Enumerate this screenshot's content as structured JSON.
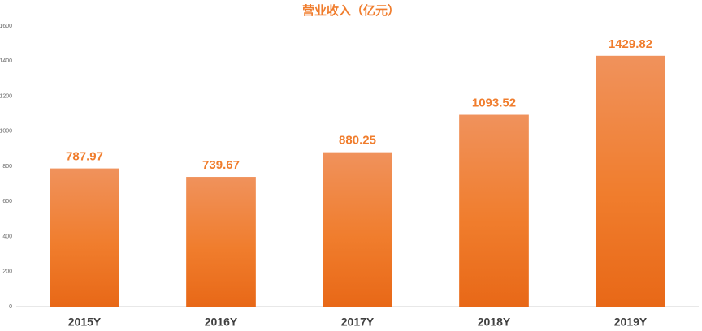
{
  "chart_data": {
    "type": "bar",
    "title": "营业收入（亿元）",
    "categories": [
      "2015Y",
      "2016Y",
      "2017Y",
      "2018Y",
      "2019Y"
    ],
    "values": [
      787.97,
      739.67,
      880.25,
      1093.52,
      1429.82
    ],
    "color": "#f07d2d",
    "ylim": [
      0,
      1600
    ],
    "yticks": [
      0,
      200,
      400,
      600,
      800,
      1000,
      1200,
      1400,
      1600
    ],
    "grid": false
  }
}
